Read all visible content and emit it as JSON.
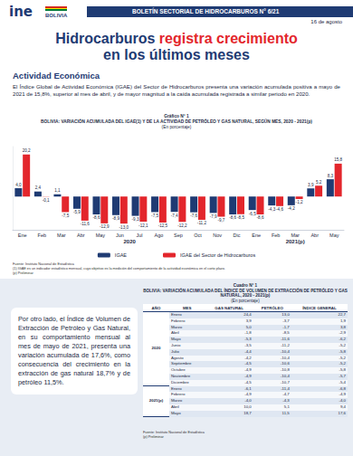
{
  "header": {
    "logo": "ine",
    "country": "BOLIVIA",
    "bulletin": "BOLETÍN SECTORIAL DE HIDROCARBUROS N° 6/21",
    "date": "16 de agosto"
  },
  "title": {
    "before": "Hidrocarburos",
    "highlight": "registra crecimiento",
    "after": "en los últimos meses"
  },
  "section": "Actividad Económica",
  "paragraph": "El Índice Global de Actividad Económica (IGAE) del Sector de Hidrocarburos presenta una variación acumulada positiva a mayo de 2021 de 15,8%, superior al mes de abril, y de mayor magnitud a la caída acumulada registrada a similar periodo en 2020.",
  "chart_data": {
    "type": "bar",
    "label": "Gráfico N° 1",
    "title": "BOLIVIA: VARIACIÓN ACUMULADA DEL IGAE(1) Y DE LA ACTIVIDAD DE PETRÓLEO Y GAS NATURAL, SEGÚN MES, 2020 - 2021(p)",
    "subtitle": "(En porcentaje)",
    "categories": [
      "Ene",
      "Feb",
      "Mar",
      "Abr",
      "May",
      "Jun",
      "Jul",
      "Ago",
      "Sep",
      "Oct",
      "Nov",
      "Dic",
      "Ene",
      "Feb",
      "Mar",
      "Abr",
      "May"
    ],
    "year_groups": [
      {
        "label": "2020",
        "categories": 12
      },
      {
        "label": "2021(p)",
        "categories": 5
      }
    ],
    "series": [
      {
        "name": "IGAE",
        "color": "#1f3b73",
        "values": [
          4.0,
          2.4,
          1.1,
          -5.9,
          -8.6,
          -8.9,
          -9.3,
          -7.5,
          -7.4,
          -7.6,
          -7.9,
          -8.6,
          -6.5,
          -4.3,
          -4.2,
          3.9,
          8.3
        ],
        "value_labels": [
          "4,0",
          "2,4",
          "1,1",
          "-5,9",
          "-8,6",
          "-8,9",
          "-9,3",
          "-7,5",
          "-7,4",
          "-7,6",
          "-7,9",
          "-8,6",
          "-6,5",
          "-4,3",
          "-4,2",
          "3,9",
          "8,3"
        ]
      },
      {
        "name": "IGAE del Sector de Hidrocarburos",
        "color": "#e3262c",
        "values": [
          20.2,
          -0.1,
          -7.5,
          -11.6,
          -12.9,
          -13.0,
          -12.1,
          -12.5,
          -12.2,
          -11.2,
          -9.7,
          -8.5,
          -8.6,
          -4.6,
          -1.2,
          5.2,
          15.8
        ],
        "value_labels": [
          "20,2",
          "-0,1",
          "-7,5",
          "-11,6",
          "-12,9",
          "-13,0",
          "-12,1",
          "-12,5",
          "-12,2",
          "-11,2",
          "-9,7",
          "-8,5",
          "-8,6",
          "-4,6",
          "-1,2",
          "5,2",
          "15,8"
        ]
      }
    ],
    "ylim": [
      -16,
      24
    ],
    "data_labels": true,
    "tick_labels": "x",
    "grid": false,
    "legend": "bottom",
    "notes": [
      "Fuente: Instituto Nacional de Estadística",
      "(1) IGAE es un indicador estadístico mensual, cuyo objetivo es la medición del comportamiento de la actividad económica en el corto plazo.",
      "(p) Preliminar"
    ]
  },
  "box": "Por otro lado, el Índice de Volumen de Extracción de Petróleo y Gas Natural, en su comportamiento mensual al mes de mayo de 2021, presenta una variación acumulada de 17,6%, como consecuencia del crecimiento en la extracción de gas natural 18,7% y de petróleo 11,5%.",
  "table": {
    "label": "Cuadro N° 1",
    "title": "BOLIVIA: VARIACIÓN ACUMULADA DEL ÍNDICE DE VOLUMEN DE EXTRACCIÓN DE PETRÓLEO Y GAS NATURAL, 2020 - 2021(p)",
    "subtitle": "(En porcentaje)",
    "columns": [
      "AÑO",
      "MES",
      "GAS NATURAL",
      "PETRÓLEO",
      "ÍNDICE GENERAL"
    ],
    "groups": [
      {
        "year": "2020",
        "rows": [
          [
            "Enero",
            "24,4",
            "13,0",
            "22,7"
          ],
          [
            "Febrero",
            "3,9",
            "-3,7",
            "1,9"
          ],
          [
            "Marzo",
            "5,0",
            "-1,7",
            "3,8"
          ],
          [
            "Abril",
            "-1,8",
            "-8,5",
            "-2,9"
          ],
          [
            "Mayo",
            "-5,3",
            "-11,6",
            "-6,2"
          ],
          [
            "Junio",
            "-3,5",
            "-11,2",
            "-5,2"
          ],
          [
            "Julio",
            "-4,4",
            "-10,4",
            "-5,8"
          ],
          [
            "Agosto",
            "-4,2",
            "-10,4",
            "-5,2"
          ],
          [
            "Septiembre",
            "-4,5",
            "-10,6",
            "-5,2"
          ],
          [
            "Octubre",
            "-4,9",
            "-10,8",
            "-5,8"
          ],
          [
            "Noviembre",
            "-4,9",
            "-10,4",
            "-5,7"
          ],
          [
            "Diciembre",
            "-4,5",
            "-10,7",
            "-5,4"
          ]
        ]
      },
      {
        "year": "2021(p)",
        "rows": [
          [
            "Enero",
            "-6,1",
            "-11,4",
            "-6,8"
          ],
          [
            "Febrero",
            "-4,9",
            "-4,7",
            "-4,9"
          ],
          [
            "Marzo",
            "-4,0",
            "-4,3",
            "-4,0"
          ],
          [
            "Abril",
            "10,0",
            "5,1",
            "9,4"
          ],
          [
            "Mayo",
            "18,7",
            "11,5",
            "17,6"
          ]
        ]
      }
    ],
    "notes": [
      "Fuente: Instituto Nacional de Estadística",
      "(p) Preliminar"
    ]
  }
}
